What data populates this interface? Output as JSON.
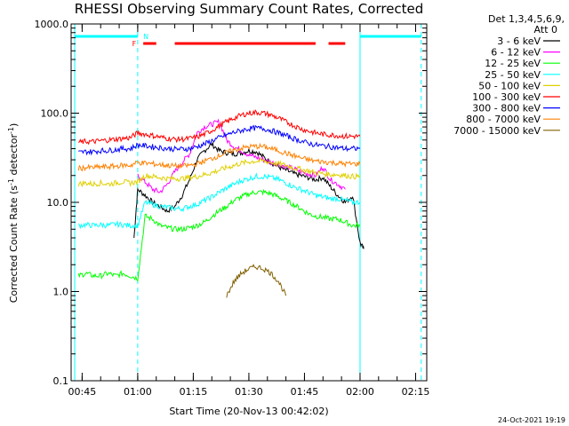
{
  "chart_data": {
    "type": "line",
    "title": "RHESSI Observing Summary Count Rates, Corrected",
    "xlabel": "Start Time (20-Nov-13 00:42:02)",
    "ylabel": "Corrected Count Rate (s⁻¹ detector⁻¹)",
    "ylabel_parts": [
      "Corrected Count Rate (s",
      "-1",
      " detector",
      "-1",
      ")"
    ],
    "yscale": "log",
    "ylim": [
      0.1,
      1000
    ],
    "xlim_minutes": [
      42.03,
      138.0
    ],
    "yticks": [
      {
        "value": 1000,
        "label": "1000.0"
      },
      {
        "value": 100,
        "label": "100.0"
      },
      {
        "value": 10,
        "label": "10.0"
      },
      {
        "value": 1,
        "label": "1.0"
      },
      {
        "value": 0.1,
        "label": "0.1"
      }
    ],
    "xticks": [
      {
        "minute": 45,
        "label": "00:45"
      },
      {
        "minute": 60,
        "label": "01:00"
      },
      {
        "minute": 75,
        "label": "01:15"
      },
      {
        "minute": 90,
        "label": "01:30"
      },
      {
        "minute": 105,
        "label": "01:45"
      },
      {
        "minute": 120,
        "label": "02:00"
      },
      {
        "minute": 135,
        "label": "02:15"
      }
    ],
    "legend_header": [
      "Det 1,3,4,5,6,9,",
      "Att 0"
    ],
    "legend_position": "right",
    "series": [
      {
        "name": "3 - 6 keV",
        "color": "#000000",
        "x": [
          59,
          60,
          62,
          64,
          66,
          68,
          70,
          72,
          74,
          76,
          78,
          80,
          82,
          84,
          86,
          88,
          90,
          92,
          94,
          96,
          98,
          100,
          102,
          104,
          106,
          108,
          110,
          112,
          114,
          116,
          118,
          120,
          121
        ],
        "y": [
          4,
          14,
          12,
          10,
          9,
          8,
          9,
          12,
          18,
          30,
          38,
          45,
          38,
          36,
          35,
          36,
          38,
          37,
          32,
          28,
          25,
          23,
          21,
          20,
          19,
          18,
          19,
          15,
          12,
          10,
          12,
          3.5,
          3
        ]
      },
      {
        "name": "6 - 12 keV",
        "color": "#ff00ff",
        "x": [
          60,
          62,
          64,
          66,
          68,
          70,
          72,
          74,
          76,
          78,
          80,
          82,
          84,
          86,
          88,
          90,
          92,
          94,
          96,
          98,
          100,
          102,
          104,
          106,
          108,
          110,
          112,
          114,
          116
        ],
        "y": [
          20,
          17,
          14,
          13,
          16,
          22,
          28,
          35,
          60,
          70,
          75,
          80,
          50,
          42,
          38,
          34,
          32,
          30,
          28,
          27,
          25,
          24,
          22,
          21,
          20,
          25,
          18,
          16,
          14
        ]
      },
      {
        "name": "12 - 25 keV",
        "color": "#00ff00",
        "x": [
          44,
          46,
          48,
          50,
          52,
          54,
          56,
          58,
          60,
          62,
          64,
          66,
          68,
          70,
          72,
          74,
          76,
          78,
          80,
          82,
          84,
          86,
          88,
          90,
          92,
          94,
          96,
          98,
          100,
          102,
          104,
          106,
          108,
          110,
          112,
          114,
          116,
          118,
          120
        ],
        "y": [
          1.5,
          1.6,
          1.5,
          1.5,
          1.6,
          1.5,
          1.6,
          1.5,
          1.4,
          7,
          6.5,
          5.5,
          5.2,
          5.0,
          5.0,
          5.2,
          5.5,
          6,
          7,
          8,
          9,
          10.5,
          11.5,
          12.5,
          13,
          13,
          12.5,
          11.5,
          10.5,
          9.5,
          8.5,
          7.5,
          7,
          6.8,
          6.5,
          6.5,
          6,
          5.5,
          5.5
        ]
      },
      {
        "name": "25 - 50 keV",
        "color": "#00ffff",
        "x": [
          44,
          46,
          48,
          50,
          52,
          54,
          56,
          58,
          60,
          62,
          64,
          66,
          68,
          70,
          72,
          74,
          76,
          78,
          80,
          82,
          84,
          86,
          88,
          90,
          92,
          94,
          96,
          98,
          100,
          102,
          104,
          106,
          108,
          110,
          112,
          114,
          116,
          118,
          120
        ],
        "y": [
          5.5,
          5.6,
          5.5,
          5.6,
          5.5,
          5.7,
          5.6,
          5.5,
          5.5,
          10,
          9.5,
          9,
          8.8,
          8.5,
          8.5,
          9,
          9.5,
          10.5,
          11.5,
          13,
          14.5,
          16,
          17.5,
          18.5,
          19.5,
          19.5,
          19,
          18,
          16.5,
          15,
          14,
          13,
          12,
          11.5,
          11,
          11,
          10.5,
          10,
          10
        ]
      },
      {
        "name": "50 - 100 keV",
        "color": "#e0d000",
        "x": [
          44,
          46,
          48,
          50,
          52,
          54,
          56,
          58,
          60,
          62,
          64,
          66,
          68,
          70,
          72,
          74,
          76,
          78,
          80,
          82,
          84,
          86,
          88,
          90,
          92,
          94,
          96,
          98,
          100,
          102,
          104,
          106,
          108,
          110,
          112,
          114,
          116,
          118,
          120
        ],
        "y": [
          16,
          16.5,
          16,
          16.5,
          16,
          16.5,
          17,
          16.5,
          17,
          20,
          19.5,
          19,
          18.5,
          18.5,
          18.5,
          19,
          19.5,
          20.5,
          21.5,
          23,
          24.5,
          26,
          27.5,
          28.5,
          29,
          29,
          28,
          27,
          26,
          24.5,
          23.5,
          22.5,
          21.5,
          21,
          20.5,
          20.5,
          20,
          19.5,
          19.5
        ]
      },
      {
        "name": "100 - 300 keV",
        "color": "#ff0000",
        "x": [
          44,
          46,
          48,
          50,
          52,
          54,
          56,
          58,
          60,
          62,
          64,
          66,
          68,
          70,
          72,
          74,
          76,
          78,
          80,
          82,
          84,
          86,
          88,
          90,
          92,
          94,
          96,
          98,
          100,
          102,
          104,
          106,
          108,
          110,
          112,
          114,
          116,
          118,
          120
        ],
        "y": [
          47,
          48,
          48,
          49,
          50,
          51,
          52,
          53,
          60,
          58,
          56,
          54,
          52,
          51,
          51,
          52,
          54,
          58,
          64,
          72,
          80,
          88,
          95,
          100,
          102,
          100,
          95,
          88,
          80,
          73,
          67,
          63,
          60,
          58,
          57,
          56,
          55,
          55,
          55
        ]
      },
      {
        "name": "300 - 800 keV",
        "color": "#0000ff",
        "x": [
          44,
          46,
          48,
          50,
          52,
          54,
          56,
          58,
          60,
          62,
          64,
          66,
          68,
          70,
          72,
          74,
          76,
          78,
          80,
          82,
          84,
          86,
          88,
          90,
          92,
          94,
          96,
          98,
          100,
          102,
          104,
          106,
          108,
          110,
          112,
          114,
          116,
          118,
          120
        ],
        "y": [
          36,
          37,
          37,
          38,
          38,
          39,
          40,
          40,
          44,
          43,
          42,
          41,
          40,
          39.5,
          39.5,
          40,
          42,
          45,
          49,
          53,
          57,
          61,
          64,
          67,
          68,
          67,
          64,
          60,
          56,
          52,
          49,
          46,
          44,
          43,
          42,
          41,
          40,
          40,
          40
        ]
      },
      {
        "name": "800 - 7000 keV",
        "color": "#ff8000",
        "x": [
          44,
          46,
          48,
          50,
          52,
          54,
          56,
          58,
          60,
          62,
          64,
          66,
          68,
          70,
          72,
          74,
          76,
          78,
          80,
          82,
          84,
          86,
          88,
          90,
          92,
          94,
          96,
          98,
          100,
          102,
          104,
          106,
          108,
          110,
          112,
          114,
          116,
          118,
          120
        ],
        "y": [
          24,
          24.5,
          24.5,
          25,
          25,
          25.5,
          26,
          26,
          28,
          27.5,
          27,
          26.5,
          26,
          25.5,
          25.5,
          26,
          27,
          29,
          31,
          33.5,
          36,
          38.5,
          40.5,
          42,
          42.5,
          42,
          40,
          38,
          35.5,
          33.5,
          31.5,
          30,
          29,
          28.5,
          28,
          27.5,
          27,
          27,
          27
        ]
      },
      {
        "name": "7000 - 15000 keV",
        "color": "#806000",
        "x": [
          84,
          86,
          88,
          90,
          92,
          94,
          96,
          98,
          100
        ],
        "y": [
          0.9,
          1.3,
          1.6,
          1.8,
          1.9,
          1.8,
          1.6,
          1.3,
          0.9
        ]
      }
    ],
    "annotations": {
      "flag_labels": {
        "flare": "F",
        "night": "N"
      },
      "legend_text_color": "#000000"
    },
    "footer_date": "24-Oct-2021 19:19"
  }
}
